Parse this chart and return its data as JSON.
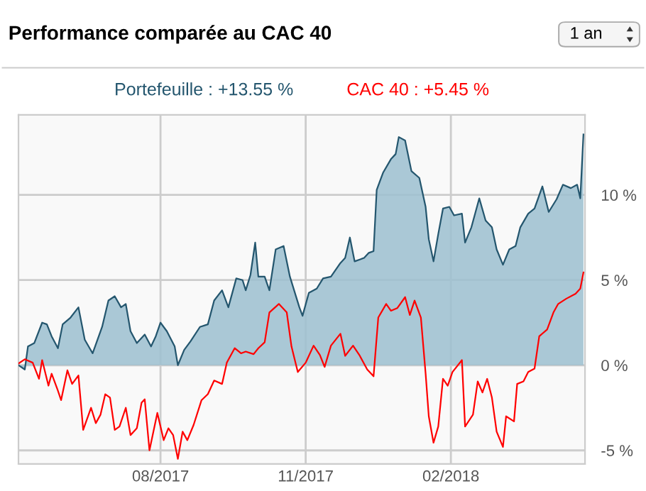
{
  "chart_data": {
    "type": "area",
    "title": "Performance comparée au CAC 40",
    "annotations": [
      "1 an"
    ],
    "xlim": [
      "2017-05-03",
      "2018-04-27"
    ],
    "ylim": [
      -5.8,
      14.7
    ],
    "xticks": [
      {
        "value": "2017-08-01",
        "label": "08/2017"
      },
      {
        "value": "2017-11-01",
        "label": "11/2017"
      },
      {
        "value": "2018-02-01",
        "label": "02/2018"
      }
    ],
    "yticks": [
      {
        "value": -5,
        "label": "-5 %"
      },
      {
        "value": 0,
        "label": "0 %"
      },
      {
        "value": 5,
        "label": "5 %"
      },
      {
        "value": 10,
        "label": "10 %"
      }
    ],
    "grid": true,
    "legend": "top",
    "series": [
      {
        "name": "Portefeuille : +13.55 %",
        "color": "#24566e",
        "x": [
          "2017-05-03",
          "2017-05-07",
          "2017-05-09",
          "2017-05-13",
          "2017-05-18",
          "2017-05-21",
          "2017-05-24",
          "2017-05-28",
          "2017-05-31",
          "2017-06-05",
          "2017-06-10",
          "2017-06-14",
          "2017-06-19",
          "2017-06-25",
          "2017-06-29",
          "2017-07-03",
          "2017-07-07",
          "2017-07-10",
          "2017-07-13",
          "2017-07-17",
          "2017-07-22",
          "2017-07-26",
          "2017-07-29",
          "2017-08-01",
          "2017-08-05",
          "2017-08-10",
          "2017-08-12",
          "2017-08-16",
          "2017-08-20",
          "2017-08-26",
          "2017-08-31",
          "2017-09-04",
          "2017-09-09",
          "2017-09-13",
          "2017-09-18",
          "2017-09-22",
          "2017-09-24",
          "2017-09-27",
          "2017-09-30",
          "2017-10-02",
          "2017-10-06",
          "2017-10-09",
          "2017-10-13",
          "2017-10-18",
          "2017-10-22",
          "2017-10-28",
          "2017-10-30",
          "2017-11-03",
          "2017-11-08",
          "2017-11-12",
          "2017-11-17",
          "2017-11-23",
          "2017-11-26",
          "2017-11-29",
          "2017-12-02",
          "2017-12-08",
          "2017-12-11",
          "2017-12-14",
          "2017-12-16",
          "2017-12-20",
          "2017-12-25",
          "2017-12-28",
          "2017-12-30",
          "2018-01-03",
          "2018-01-07",
          "2018-01-12",
          "2018-01-16",
          "2018-01-18",
          "2018-01-21",
          "2018-01-24",
          "2018-01-27",
          "2018-01-31",
          "2018-02-03",
          "2018-02-08",
          "2018-02-10",
          "2018-02-14",
          "2018-02-19",
          "2018-02-23",
          "2018-02-27",
          "2018-03-02",
          "2018-03-06",
          "2018-03-10",
          "2018-03-14",
          "2018-03-17",
          "2018-03-22",
          "2018-03-26",
          "2018-03-31",
          "2018-04-04",
          "2018-04-09",
          "2018-04-13",
          "2018-04-18",
          "2018-04-22",
          "2018-04-24",
          "2018-04-26"
        ],
        "values": [
          0,
          -0.25,
          1.1,
          1.3,
          2.5,
          2.4,
          1.7,
          1.0,
          2.4,
          2.8,
          3.4,
          1.5,
          0.7,
          2.25,
          3.8,
          4.05,
          3.4,
          3.6,
          2.0,
          1.3,
          1.8,
          1.1,
          1.7,
          2.5,
          2.0,
          1.1,
          0,
          0.9,
          1.4,
          2.25,
          2.4,
          3.8,
          4.4,
          3.4,
          5.1,
          5.0,
          4.4,
          5.3,
          7.2,
          5.2,
          5.2,
          4.4,
          6.8,
          7.0,
          5.2,
          3.4,
          2.9,
          4.25,
          4.5,
          5.1,
          5.2,
          6.0,
          6.3,
          7.5,
          6.1,
          6.3,
          6.6,
          6.7,
          10.3,
          11.3,
          12.1,
          12.4,
          13.4,
          13.2,
          11.4,
          11.0,
          9.3,
          7.4,
          6.1,
          7.7,
          9.2,
          9.3,
          8.8,
          8.9,
          7.2,
          8.1,
          9.8,
          8.5,
          8.1,
          6.8,
          5.9,
          6.8,
          7.0,
          8.1,
          8.9,
          9.2,
          10.5,
          9.0,
          9.75,
          10.6,
          10.4,
          10.6,
          9.8,
          13.55
        ]
      },
      {
        "name": "CAC 40 : +5.45 %",
        "type": "line",
        "color": "#ff0000",
        "x": [
          "2017-05-03",
          "2017-05-07",
          "2017-05-12",
          "2017-05-16",
          "2017-05-18",
          "2017-05-22",
          "2017-05-24",
          "2017-05-28",
          "2017-05-30",
          "2017-06-03",
          "2017-06-06",
          "2017-06-10",
          "2017-06-13",
          "2017-06-18",
          "2017-06-21",
          "2017-06-24",
          "2017-06-27",
          "2017-06-30",
          "2017-07-03",
          "2017-07-06",
          "2017-07-10",
          "2017-07-13",
          "2017-07-17",
          "2017-07-20",
          "2017-07-22",
          "2017-07-25",
          "2017-07-30",
          "2017-08-03",
          "2017-08-06",
          "2017-08-09",
          "2017-08-12",
          "2017-08-15",
          "2017-08-18",
          "2017-08-22",
          "2017-08-27",
          "2017-08-31",
          "2017-09-04",
          "2017-09-09",
          "2017-09-12",
          "2017-09-17",
          "2017-09-21",
          "2017-09-24",
          "2017-09-29",
          "2017-10-02",
          "2017-10-06",
          "2017-10-09",
          "2017-10-15",
          "2017-10-20",
          "2017-10-23",
          "2017-10-27",
          "2017-11-01",
          "2017-11-06",
          "2017-11-10",
          "2017-11-13",
          "2017-11-17",
          "2017-11-23",
          "2017-11-26",
          "2017-12-01",
          "2017-12-05",
          "2017-12-10",
          "2017-12-14",
          "2017-12-17",
          "2017-12-22",
          "2017-12-25",
          "2017-12-29",
          "2018-01-03",
          "2018-01-06",
          "2018-01-09",
          "2018-01-13",
          "2018-01-16",
          "2018-01-18",
          "2018-01-21",
          "2018-01-24",
          "2018-01-27",
          "2018-01-30",
          "2018-02-02",
          "2018-02-08",
          "2018-02-10",
          "2018-02-15",
          "2018-02-18",
          "2018-02-21",
          "2018-02-24",
          "2018-02-27",
          "2018-03-02",
          "2018-03-06",
          "2018-03-08",
          "2018-03-13",
          "2018-03-15",
          "2018-03-19",
          "2018-03-22",
          "2018-03-26",
          "2018-03-29",
          "2018-04-03",
          "2018-04-07",
          "2018-04-10",
          "2018-04-15",
          "2018-04-21",
          "2018-04-24",
          "2018-04-26"
        ],
        "values": [
          0.1,
          0.35,
          0.15,
          -0.8,
          0.3,
          -1.2,
          -0.5,
          -1.5,
          -2.05,
          -0.3,
          -1.1,
          -0.6,
          -3.8,
          -2.5,
          -3.4,
          -2.9,
          -1.7,
          -1.9,
          -3.8,
          -3.6,
          -2.5,
          -4.1,
          -3.7,
          -2.2,
          -2.0,
          -5.0,
          -2.8,
          -4.4,
          -3.7,
          -4.1,
          -5.5,
          -3.9,
          -4.4,
          -3.5,
          -2.05,
          -1.7,
          -0.9,
          -1.1,
          0.15,
          1.0,
          0.7,
          0.8,
          0.65,
          1.0,
          1.35,
          3.1,
          3.6,
          3.1,
          1.1,
          -0.4,
          0.15,
          1.15,
          0.6,
          -0.1,
          1.15,
          1.85,
          0.55,
          1.15,
          0.6,
          -0.25,
          -0.65,
          2.8,
          3.6,
          3.2,
          3.35,
          4.0,
          2.95,
          3.8,
          2.8,
          -0.5,
          -3.0,
          -4.55,
          -3.6,
          -0.8,
          -1.2,
          -0.4,
          0.3,
          -3.6,
          -2.9,
          -0.95,
          -1.6,
          -0.8,
          -1.9,
          -3.9,
          -4.8,
          -3.0,
          -3.3,
          -1.1,
          -0.95,
          -0.4,
          -0.2,
          1.7,
          2.1,
          3.1,
          3.6,
          3.9,
          4.2,
          4.5,
          5.45
        ]
      }
    ]
  }
}
